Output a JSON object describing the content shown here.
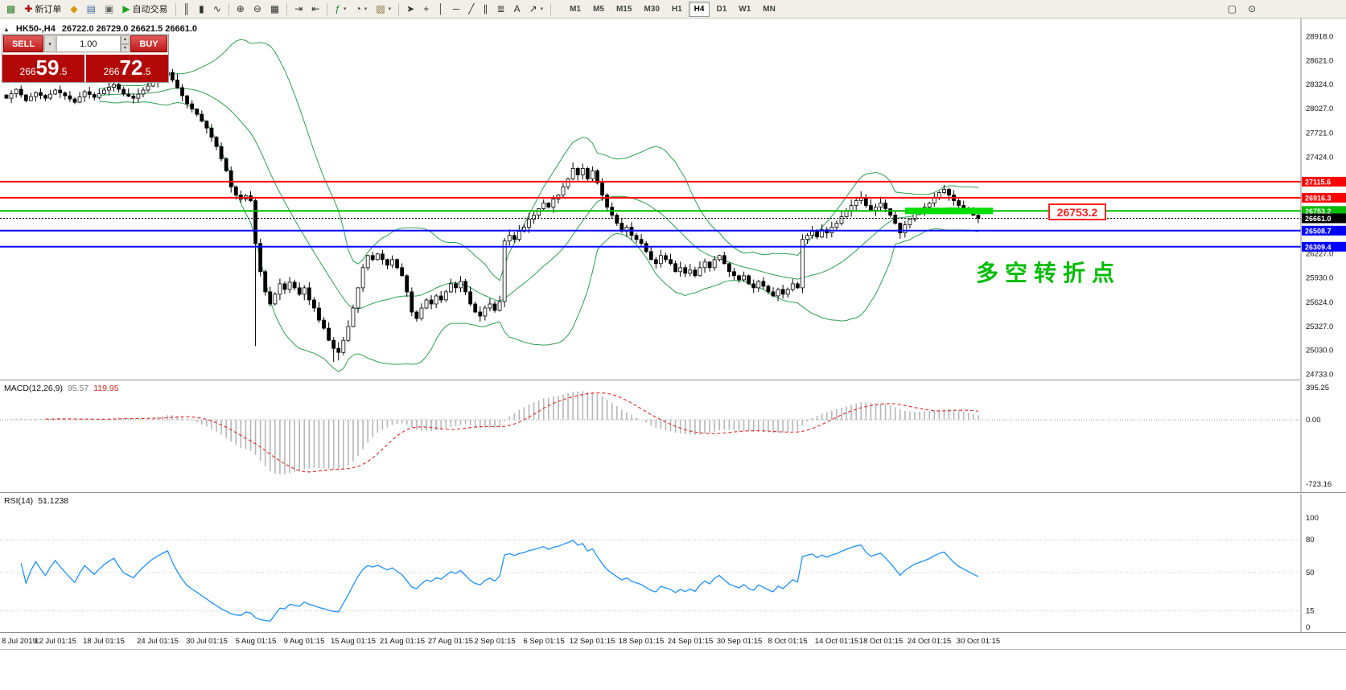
{
  "toolbar": {
    "caret_glyph": "▾",
    "left_items": [
      {
        "name": "chart-window-icon",
        "glyph": "▩",
        "color": "#2e7d32"
      },
      {
        "name": "new-order-button",
        "glyph": "✚",
        "color": "#b00000",
        "label": "新订单"
      },
      {
        "name": "sound-alert-icon",
        "glyph": "◆",
        "color": "#d99800"
      },
      {
        "name": "market-watch-icon",
        "glyph": "▤",
        "color": "#44699e"
      },
      {
        "name": "terminal-icon",
        "glyph": "▣",
        "color": "#666666"
      },
      {
        "name": "autotrading-button",
        "glyph": "▶",
        "color": "#1ca51c",
        "label": "自动交易"
      },
      {
        "sep": true
      },
      {
        "name": "bar-chart-type-icon",
        "glyph": "║",
        "color": "#333333"
      },
      {
        "name": "candlestick-type-icon",
        "glyph": "▮",
        "color": "#333333"
      },
      {
        "name": "line-chart-type-icon",
        "glyph": "∿",
        "color": "#333333"
      },
      {
        "sep": true
      },
      {
        "name": "zoom-in-icon",
        "glyph": "⊕",
        "color": "#333333"
      },
      {
        "name": "zoom-out-icon",
        "glyph": "⊖",
        "color": "#333333"
      },
      {
        "name": "tile-windows-icon",
        "glyph": "▦",
        "color": "#333333"
      },
      {
        "sep": true
      },
      {
        "name": "auto-scroll-icon",
        "glyph": "⇥",
        "color": "#333333"
      },
      {
        "name": "chart-shift-icon",
        "glyph": "⇤",
        "color": "#333333"
      },
      {
        "sep": true
      },
      {
        "name": "indicators-menu-icon",
        "glyph": "ƒ",
        "color": "#1a8a3a",
        "caret": true
      },
      {
        "name": "periods-menu-icon",
        "glyph": "◔",
        "color": "#333333",
        "caret": true
      },
      {
        "name": "templates-menu-icon",
        "glyph": "▨",
        "color": "#8a6d3b",
        "caret": true
      },
      {
        "sep": true
      },
      {
        "name": "cursor-tool-icon",
        "glyph": "➤",
        "color": "#333333"
      },
      {
        "name": "crosshair-tool-icon",
        "glyph": "+",
        "color": "#333333"
      },
      {
        "name": "vertical-line-tool-icon",
        "glyph": "│",
        "color": "#333333"
      },
      {
        "name": "horizontal-line-tool-icon",
        "glyph": "─",
        "color": "#333333"
      },
      {
        "name": "trendline-tool-icon",
        "glyph": "╱",
        "color": "#333333"
      },
      {
        "name": "channel-tool-icon",
        "glyph": "∥",
        "color": "#333333"
      },
      {
        "name": "fibonacci-tool-icon",
        "glyph": "≣",
        "color": "#333333"
      },
      {
        "name": "text-tool-icon",
        "glyph": "A",
        "color": "#333333"
      },
      {
        "name": "arrows-tool-icon",
        "glyph": "↗",
        "color": "#333333",
        "caret": true
      },
      {
        "sep": true
      }
    ],
    "timeframes": [
      "M1",
      "M5",
      "M15",
      "M30",
      "H1",
      "H4",
      "D1",
      "W1",
      "MN"
    ],
    "active_timeframe": "H4",
    "right_items": [
      {
        "name": "new-chart-window-icon",
        "glyph": "▢",
        "color": "#333333"
      },
      {
        "name": "chart-search-icon",
        "glyph": "⊙",
        "color": "#333333"
      }
    ]
  },
  "chart": {
    "symbol_period": "HK50-,H4",
    "ohlc_text": "26722.0 26729.0 26621.5 26661.0"
  },
  "trade_panel": {
    "toggle_glyph": "▲",
    "sell_label": "SELL",
    "buy_label": "BUY",
    "volume": "1.00",
    "sell_price": "26659.5",
    "buy_price": "26672.5",
    "spin_up": "▴",
    "spin_down": "▾",
    "dropdown_caret": "▾"
  },
  "annotations": {
    "price_label": "26753.2",
    "turning_point": "多空转折点",
    "turning_point_color": "#00bb00",
    "callout_color": "#ff2222"
  },
  "chart_data": {
    "type": "candlestick",
    "symbol": "HK50-",
    "period": "H4",
    "ohlc_current": {
      "open": 26722.0,
      "high": 26729.0,
      "low": 26621.5,
      "close": 26661.0
    },
    "ylim": [
      24733.0,
      28918.0
    ],
    "axis_ticks": [
      28918.0,
      28621.0,
      28324.0,
      28027.0,
      27721.0,
      27424.0,
      26930.0,
      26227.0,
      25930.0,
      25624.0,
      25327.0,
      25030.0,
      24733.0
    ],
    "closes": [
      28150,
      28205,
      28260,
      28190,
      28120,
      28170,
      28220,
      28185,
      28150,
      28200,
      28250,
      28215,
      28180,
      28140,
      28100,
      28165,
      28230,
      28195,
      28160,
      28205,
      28250,
      28285,
      28320,
      28260,
      28200,
      28175,
      28150,
      28200,
      28250,
      28300,
      28350,
      28390,
      28430,
      28470,
      28375,
      28280,
      28180,
      28080,
      28015,
      27950,
      27865,
      27780,
      27665,
      27550,
      27400,
      27250,
      27050,
      26950,
      26900,
      26940,
      26880,
      26350,
      26000,
      25750,
      25600,
      25720,
      25850,
      25780,
      25870,
      25800,
      25720,
      25800,
      25650,
      25550,
      25400,
      25300,
      25150,
      25050,
      25000,
      25150,
      25320,
      25550,
      25800,
      26050,
      26200,
      26150,
      26220,
      26150,
      26080,
      26150,
      26050,
      25950,
      25750,
      25500,
      25420,
      25550,
      25650,
      25600,
      25700,
      25650,
      25750,
      25850,
      25800,
      25880,
      25750,
      25600,
      25500,
      25450,
      25550,
      25600,
      25520,
      25630,
      26380,
      26450,
      26400,
      26500,
      26550,
      26650,
      26700,
      26780,
      26850,
      26800,
      26900,
      26950,
      27050,
      27150,
      27280,
      27200,
      27280,
      27150,
      27250,
      27100,
      26950,
      26800,
      26700,
      26600,
      26500,
      26550,
      26450,
      26400,
      26350,
      26250,
      26150,
      26100,
      26200,
      26150,
      26100,
      26000,
      26050,
      25980,
      26020,
      25950,
      26050,
      26120,
      26050,
      26150,
      26200,
      26100,
      26000,
      25950,
      25900,
      25950,
      25850,
      25800,
      25880,
      25820,
      25750,
      25700,
      25780,
      25720,
      25780,
      25850,
      25800,
      26400,
      26450,
      26500,
      26430,
      26520,
      26480,
      26550,
      26600,
      26680,
      26750,
      26820,
      26880,
      26920,
      26820,
      26760,
      26800,
      26850,
      26780,
      26700,
      26600,
      26480,
      26580,
      26650,
      26720,
      26760,
      26800,
      26850,
      26920,
      26980,
      27020,
      26950,
      26880,
      26820,
      26780,
      26740,
      26700,
      26661
    ],
    "wick_overrides": [
      [
        51,
        null,
        25080
      ],
      [
        67,
        null,
        24880
      ],
      [
        68,
        null,
        24900
      ],
      [
        116,
        27355,
        null
      ],
      [
        118,
        27340,
        null
      ]
    ],
    "date_labels": [
      [
        0,
        "8 Jul 2019"
      ],
      [
        10,
        "12 Jul 01:15"
      ],
      [
        20,
        "18 Jul 01:15"
      ],
      [
        31,
        "24 Jul 01:15"
      ],
      [
        41,
        "30 Jul 01:15"
      ],
      [
        51,
        "5 Aug 01:15"
      ],
      [
        61,
        "9 Aug 01:15"
      ],
      [
        71,
        "15 Aug 01:15"
      ],
      [
        81,
        "21 Aug 01:15"
      ],
      [
        91,
        "27 Aug 01:15"
      ],
      [
        100,
        "2 Sep 01:15"
      ],
      [
        110,
        "6 Sep 01:15"
      ],
      [
        120,
        "12 Sep 01:15"
      ],
      [
        130,
        "18 Sep 01:15"
      ],
      [
        140,
        "24 Sep 01:15"
      ],
      [
        150,
        "30 Sep 01:15"
      ],
      [
        160,
        "8 Oct 01:15"
      ],
      [
        170,
        "14 Oct 01:15"
      ],
      [
        179,
        "18 Oct 01:15"
      ],
      [
        189,
        "24 Oct 01:15"
      ],
      [
        199,
        "30 Oct 01:15"
      ]
    ],
    "levels": [
      {
        "price": 27115.6,
        "color": "#ff0000"
      },
      {
        "price": 26916.3,
        "color": "#ff0000"
      },
      {
        "price": 26753.2,
        "color": "#00bb00"
      },
      {
        "price": 26661.0,
        "color": "#000000",
        "style": "current"
      },
      {
        "price": 26508.7,
        "color": "#0000ff"
      },
      {
        "price": 26309.4,
        "color": "#0000ff"
      }
    ],
    "bollinger": {
      "period": 20,
      "deviation": 2,
      "color": "#2f9e4f"
    },
    "highlight": {
      "bar_start": 184,
      "bar_end": 202,
      "price": 26753.2,
      "color": "#00dd00"
    },
    "macd": {
      "name": "MACD(12,26,9)",
      "main_value": "95.57",
      "signal_value": "119.95",
      "params": [
        12,
        26,
        9
      ],
      "axis_ticks": [
        395.25,
        0,
        -723.16
      ],
      "histogram_color": "#b6b6b6",
      "signal_color": "#e03636"
    },
    "rsi": {
      "name": "RSI(14)",
      "value": "51.1238",
      "period": 14,
      "axis_ticks": [
        100,
        80,
        50,
        15,
        0
      ],
      "line_color": "#1e90ff"
    }
  }
}
